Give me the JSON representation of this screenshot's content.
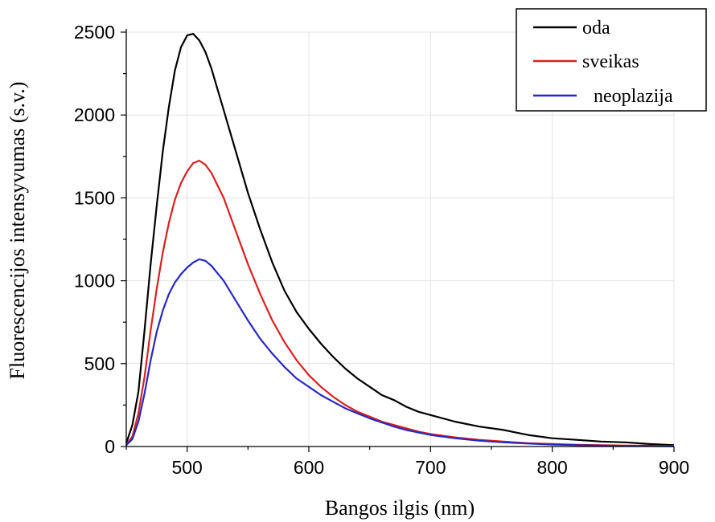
{
  "chart_data": {
    "type": "line",
    "title": "",
    "xlabel": "Bangos ilgis (nm)",
    "ylabel": "Fluorescencijos intensyvumas (s.v.)",
    "xlim": [
      450,
      900
    ],
    "ylim": [
      0,
      2500
    ],
    "xticks": [
      500,
      600,
      700,
      800,
      900
    ],
    "yticks": [
      0,
      500,
      1000,
      1500,
      2000,
      2500
    ],
    "grid": true,
    "legend_position": "top-right",
    "series": [
      {
        "name": "oda",
        "color": "#000000",
        "points": [
          [
            450,
            20
          ],
          [
            455,
            130
          ],
          [
            460,
            330
          ],
          [
            465,
            700
          ],
          [
            470,
            1100
          ],
          [
            475,
            1450
          ],
          [
            480,
            1780
          ],
          [
            485,
            2050
          ],
          [
            490,
            2270
          ],
          [
            495,
            2410
          ],
          [
            500,
            2480
          ],
          [
            505,
            2490
          ],
          [
            510,
            2450
          ],
          [
            515,
            2380
          ],
          [
            520,
            2280
          ],
          [
            530,
            2030
          ],
          [
            540,
            1780
          ],
          [
            550,
            1530
          ],
          [
            560,
            1310
          ],
          [
            570,
            1110
          ],
          [
            580,
            940
          ],
          [
            590,
            810
          ],
          [
            600,
            710
          ],
          [
            610,
            620
          ],
          [
            620,
            540
          ],
          [
            630,
            470
          ],
          [
            640,
            410
          ],
          [
            650,
            360
          ],
          [
            660,
            310
          ],
          [
            670,
            280
          ],
          [
            680,
            240
          ],
          [
            690,
            210
          ],
          [
            700,
            190
          ],
          [
            720,
            150
          ],
          [
            740,
            120
          ],
          [
            760,
            100
          ],
          [
            780,
            70
          ],
          [
            800,
            50
          ],
          [
            820,
            40
          ],
          [
            840,
            30
          ],
          [
            860,
            25
          ],
          [
            880,
            15
          ],
          [
            900,
            8
          ]
        ]
      },
      {
        "name": "sveikas",
        "color": "#d92020",
        "points": [
          [
            450,
            10
          ],
          [
            455,
            60
          ],
          [
            460,
            200
          ],
          [
            465,
            420
          ],
          [
            470,
            700
          ],
          [
            475,
            950
          ],
          [
            480,
            1170
          ],
          [
            485,
            1350
          ],
          [
            490,
            1490
          ],
          [
            495,
            1590
          ],
          [
            500,
            1660
          ],
          [
            505,
            1710
          ],
          [
            510,
            1725
          ],
          [
            515,
            1700
          ],
          [
            520,
            1650
          ],
          [
            530,
            1500
          ],
          [
            540,
            1300
          ],
          [
            550,
            1100
          ],
          [
            560,
            920
          ],
          [
            570,
            760
          ],
          [
            580,
            630
          ],
          [
            590,
            520
          ],
          [
            600,
            430
          ],
          [
            610,
            360
          ],
          [
            620,
            300
          ],
          [
            630,
            250
          ],
          [
            640,
            210
          ],
          [
            650,
            180
          ],
          [
            660,
            150
          ],
          [
            670,
            130
          ],
          [
            680,
            110
          ],
          [
            690,
            90
          ],
          [
            700,
            75
          ],
          [
            720,
            55
          ],
          [
            740,
            40
          ],
          [
            760,
            30
          ],
          [
            780,
            20
          ],
          [
            800,
            15
          ],
          [
            820,
            10
          ],
          [
            840,
            8
          ],
          [
            860,
            6
          ],
          [
            880,
            5
          ],
          [
            900,
            3
          ]
        ]
      },
      {
        "name": "neoplazija",
        "color": "#2828c0",
        "points": [
          [
            450,
            8
          ],
          [
            455,
            45
          ],
          [
            460,
            150
          ],
          [
            465,
            320
          ],
          [
            470,
            520
          ],
          [
            475,
            690
          ],
          [
            480,
            820
          ],
          [
            485,
            920
          ],
          [
            490,
            990
          ],
          [
            495,
            1040
          ],
          [
            500,
            1080
          ],
          [
            505,
            1110
          ],
          [
            510,
            1130
          ],
          [
            515,
            1120
          ],
          [
            520,
            1090
          ],
          [
            530,
            1000
          ],
          [
            540,
            880
          ],
          [
            550,
            760
          ],
          [
            560,
            650
          ],
          [
            570,
            560
          ],
          [
            580,
            480
          ],
          [
            590,
            410
          ],
          [
            600,
            360
          ],
          [
            610,
            310
          ],
          [
            620,
            270
          ],
          [
            630,
            230
          ],
          [
            640,
            200
          ],
          [
            650,
            170
          ],
          [
            660,
            145
          ],
          [
            670,
            120
          ],
          [
            680,
            100
          ],
          [
            690,
            85
          ],
          [
            700,
            70
          ],
          [
            720,
            50
          ],
          [
            740,
            35
          ],
          [
            760,
            25
          ],
          [
            780,
            18
          ],
          [
            800,
            12
          ],
          [
            820,
            8
          ],
          [
            840,
            6
          ],
          [
            860,
            4
          ],
          [
            880,
            3
          ],
          [
            900,
            2
          ]
        ]
      }
    ]
  }
}
